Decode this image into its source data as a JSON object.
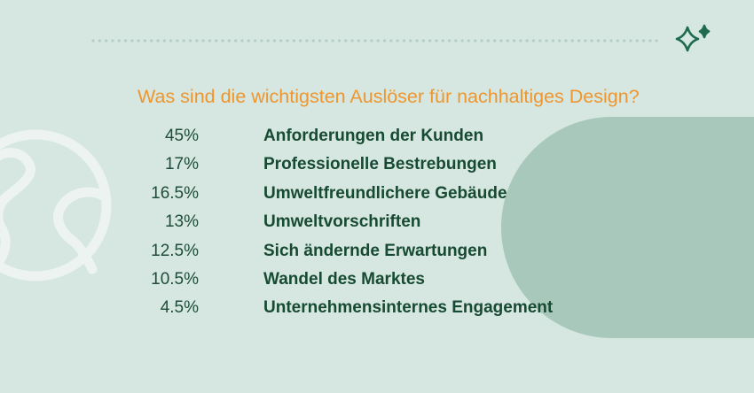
{
  "chart_data": {
    "type": "table",
    "title": "Was sind die wichtigsten Auslöser für nachhaltiges Design?",
    "categories": [
      "Anforderungen der Kunden",
      "Professionelle Bestrebungen",
      "Umweltfreundlichere Gebäude",
      "Umweltvorschriften",
      "Sich ändernde Erwartungen",
      "Wandel des Marktes",
      "Unternehmensinternes Engagement"
    ],
    "values": [
      45,
      17,
      16.5,
      13,
      12.5,
      10.5,
      4.5
    ],
    "value_labels": [
      "45%",
      "17%",
      "16.5%",
      "13%",
      "12.5%",
      "10.5%",
      "4.5%"
    ]
  },
  "colors": {
    "background": "#d5e7e0",
    "title": "#ee962f",
    "text": "#174a33",
    "blob": "#a8c8bb",
    "sparkle": "#1e6b4f",
    "dots": "#b7cec5",
    "globe": "#ecf3f0"
  },
  "decor": {
    "icons": [
      "sparkle-icon",
      "globe-icon"
    ]
  }
}
